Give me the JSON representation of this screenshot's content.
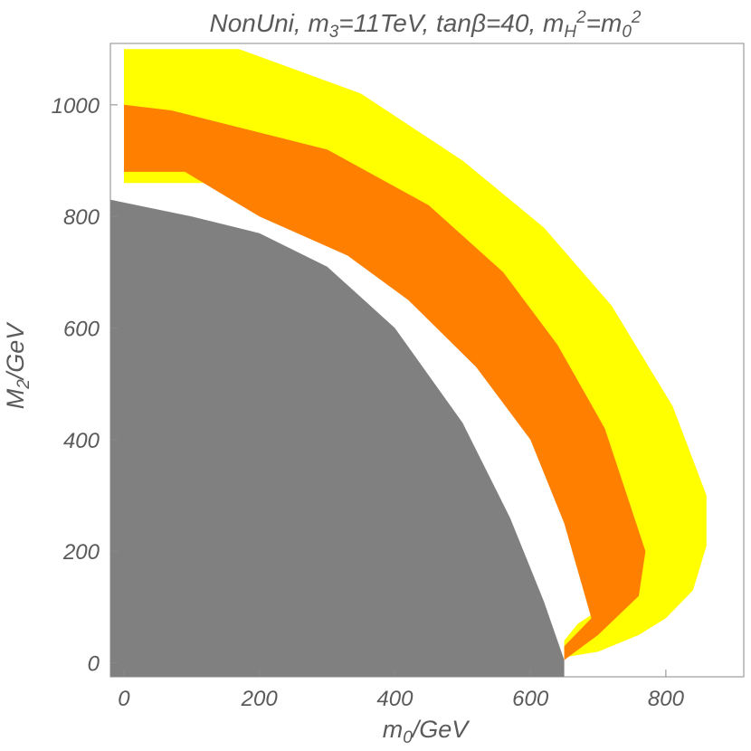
{
  "chart_data": {
    "type": "area",
    "title": "NonUni, m₃=11TeV, tanβ=40, m_H²=m₀²",
    "title_parts": {
      "prefix": "NonUni, m",
      "m_sub": "3",
      "mid1": "=11TeV, tanβ=40, m",
      "h_sub": "H",
      "h_sup": "2",
      "mid2": "=m",
      "z_sub": "0",
      "z_sup": "2"
    },
    "xlabel": "m₀/GeV",
    "xlabel_parts": {
      "base": "m",
      "sub": "0",
      "rest": "/GeV"
    },
    "ylabel": "M₂/GeV",
    "ylabel_parts": {
      "base": "M",
      "sub": "2",
      "rest": "/GeV"
    },
    "xlim": [
      -20,
      915
    ],
    "ylim": [
      -25,
      1110
    ],
    "xticks": [
      0,
      200,
      400,
      600,
      800
    ],
    "yticks": [
      0,
      200,
      400,
      600,
      800,
      1000
    ],
    "grid": false,
    "legend": "none",
    "colors": {
      "excluded": "#808080",
      "outer_band": "#ffff00",
      "inner_band": "#ff8000",
      "frame": "#888888",
      "text": "#5a5a5a"
    },
    "series": [
      {
        "role": "excluded",
        "color": "#808080",
        "polygon": [
          [
            -20,
            -25
          ],
          [
            -20,
            830
          ],
          [
            100,
            800
          ],
          [
            200,
            770
          ],
          [
            300,
            710
          ],
          [
            400,
            600
          ],
          [
            500,
            430
          ],
          [
            570,
            260
          ],
          [
            620,
            110
          ],
          [
            650,
            5
          ],
          [
            650,
            -25
          ]
        ]
      },
      {
        "role": "outer_band",
        "color": "#ffff00",
        "polygon": [
          [
            0,
            1100
          ],
          [
            170,
            1100
          ],
          [
            350,
            1020
          ],
          [
            500,
            900
          ],
          [
            620,
            780
          ],
          [
            720,
            640
          ],
          [
            810,
            460
          ],
          [
            860,
            300
          ],
          [
            860,
            210
          ],
          [
            840,
            130
          ],
          [
            800,
            80
          ],
          [
            760,
            50
          ],
          [
            700,
            20
          ],
          [
            650,
            10
          ],
          [
            650,
            40
          ],
          [
            670,
            70
          ],
          [
            720,
            110
          ],
          [
            680,
            300
          ],
          [
            640,
            420
          ],
          [
            580,
            540
          ],
          [
            480,
            650
          ],
          [
            380,
            740
          ],
          [
            250,
            830
          ],
          [
            120,
            860
          ],
          [
            0,
            860
          ]
        ]
      },
      {
        "role": "inner_band",
        "color": "#ff8000",
        "polygon": [
          [
            0,
            1000
          ],
          [
            70,
            990
          ],
          [
            300,
            920
          ],
          [
            450,
            820
          ],
          [
            560,
            700
          ],
          [
            640,
            570
          ],
          [
            710,
            420
          ],
          [
            770,
            200
          ],
          [
            760,
            120
          ],
          [
            700,
            50
          ],
          [
            650,
            5
          ],
          [
            650,
            30
          ],
          [
            690,
            80
          ],
          [
            650,
            250
          ],
          [
            600,
            400
          ],
          [
            520,
            530
          ],
          [
            420,
            650
          ],
          [
            330,
            730
          ],
          [
            200,
            800
          ],
          [
            90,
            880
          ],
          [
            0,
            880
          ]
        ]
      }
    ]
  }
}
